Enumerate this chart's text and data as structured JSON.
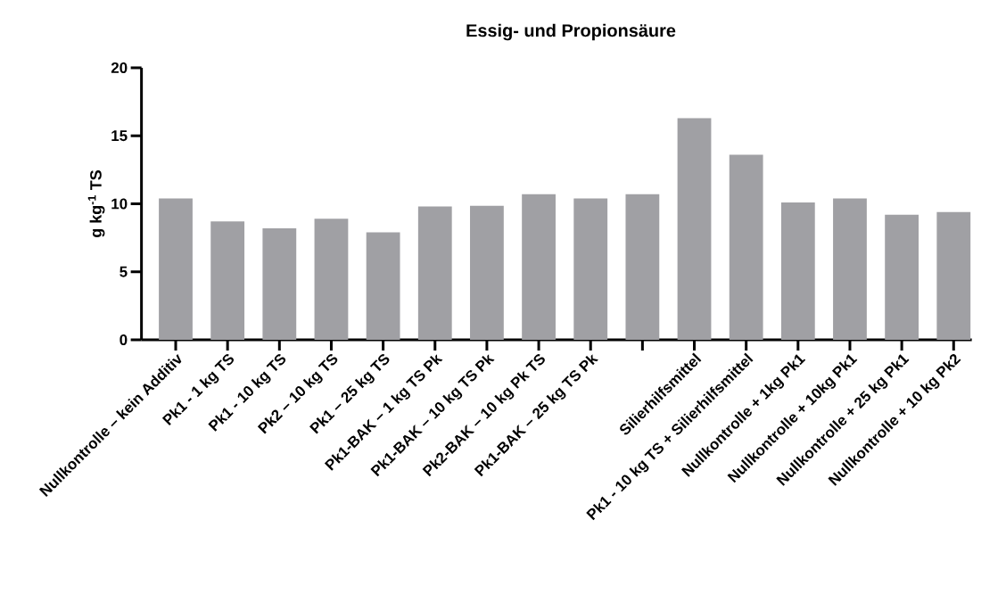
{
  "chart_data": {
    "type": "bar",
    "title": "Essig- und Propionsäure",
    "ylabel": "g kg$^{-1}$ TS",
    "categories": [
      "Nullkontrolle – kein Additiv",
      "Pk1 - 1 kg TS",
      "Pk1 - 10 kg TS",
      "Pk2 – 10 kg TS",
      "Pk1 – 25 kg TS",
      "Pk1-BAK – 1 kg TS Pk",
      "Pk1-BAK – 10 kg TS Pk",
      "Pk2-BAK – 10 kg Pk TS",
      "Pk1-BAK – 25 kg TS Pk",
      null,
      "Silierhilfsmittel",
      "Pk1 - 10 kg TS + Silierhilfsmittel",
      "Nullkontrolle + 1kg Pk1",
      "Nullkontrolle + 10kg Pk1",
      "Nullkontrolle + 25 kg Pk1",
      "Nullkontrolle + 10 kg Pk2"
    ],
    "values": [
      10.4,
      8.7,
      8.2,
      8.9,
      7.9,
      9.8,
      9.85,
      10.7,
      10.4,
      10.7,
      16.3,
      13.6,
      10.1,
      10.4,
      9.2,
      9.4
    ],
    "color": "#a0a0a4",
    "ylim": [
      0,
      20
    ],
    "yticks": [
      0,
      5,
      10,
      15,
      20
    ]
  }
}
